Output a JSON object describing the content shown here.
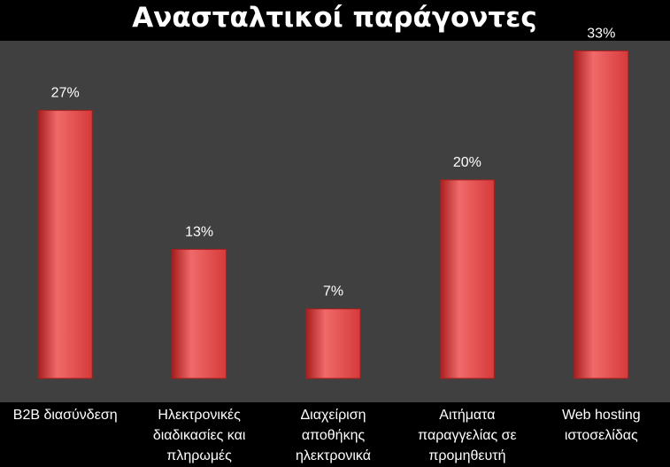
{
  "chart_data": {
    "type": "bar",
    "title": "Ανασταλτικοί παράγοντες",
    "categories": [
      [
        "B2B διασύνδεση"
      ],
      [
        "Ηλεκτρονικές",
        "διαδικασίες και",
        "πληρωμές"
      ],
      [
        "Διαχείριση",
        "αποθήκης",
        "ηλεκτρονικά"
      ],
      [
        "Αιτήματα",
        "παραγγελίας σε",
        "προμηθευτή"
      ],
      [
        "Web hosting",
        "ιστοσελίδας"
      ]
    ],
    "values": [
      27,
      13,
      7,
      20,
      33
    ],
    "value_labels": [
      "27%",
      "13%",
      "7%",
      "20%",
      "33%"
    ],
    "ylim": [
      0,
      35
    ],
    "grid": false,
    "colors": {
      "page_background": "#000000",
      "plot_background": "#404040",
      "bar": "#d63a3a",
      "bar_light": "#f06a6a",
      "bar_dark": "#a81e1e",
      "text": "#ffffff"
    }
  }
}
